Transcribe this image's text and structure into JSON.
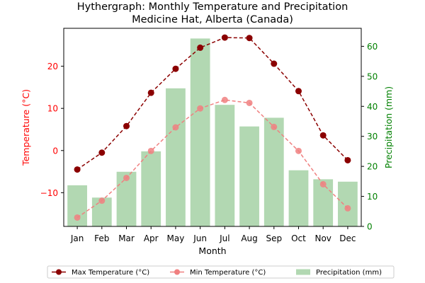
{
  "chart_data": {
    "type": "bar+line",
    "title": "Hythergraph: Monthly Temperature and Precipitation",
    "subtitle": "Medicine Hat, Alberta (Canada)",
    "xlabel": "Month",
    "ylabel_left": "Temperature (°C)",
    "ylabel_right": "Precipitation (mm)",
    "categories": [
      "Jan",
      "Feb",
      "Mar",
      "Apr",
      "May",
      "Jun",
      "Jul",
      "Aug",
      "Sep",
      "Oct",
      "Nov",
      "Dec"
    ],
    "ylim_left": [
      -18.0,
      29.0
    ],
    "ylim_right": [
      0,
      66
    ],
    "yticks_left": [
      -10,
      0,
      10,
      20
    ],
    "yticks_right": [
      0,
      10,
      20,
      30,
      40,
      50,
      60
    ],
    "series": [
      {
        "name": "Max Temperature (°C)",
        "axis": "left",
        "kind": "line",
        "color": "#8b0000",
        "values": [
          -4.5,
          -0.5,
          5.8,
          13.7,
          19.4,
          24.4,
          26.8,
          26.7,
          20.6,
          14.1,
          3.6,
          -2.3
        ]
      },
      {
        "name": "Min Temperature (°C)",
        "axis": "left",
        "kind": "line",
        "color": "#f08080",
        "values": [
          -15.9,
          -11.9,
          -6.5,
          -0.1,
          5.5,
          10.0,
          12.0,
          11.3,
          5.6,
          -0.1,
          -8.0,
          -13.7
        ]
      },
      {
        "name": "Precipitation (mm)",
        "axis": "right",
        "kind": "bar",
        "color": "#b2d8b2",
        "values": [
          13.7,
          9.6,
          18.2,
          25.0,
          46.0,
          62.6,
          40.5,
          33.3,
          36.2,
          18.7,
          15.7,
          14.9
        ]
      }
    ],
    "legend_position": "bottom-center",
    "grid": false
  }
}
